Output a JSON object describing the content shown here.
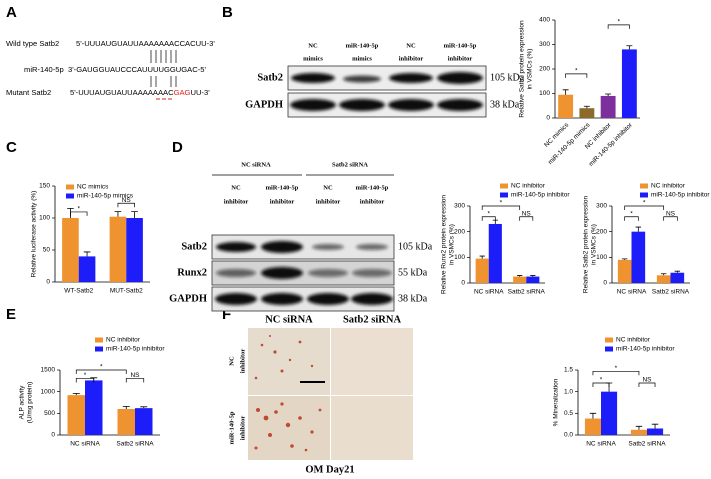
{
  "panel_labels": [
    "A",
    "B",
    "C",
    "D",
    "E",
    "F"
  ],
  "sequences": {
    "wild_type": {
      "label": "Wild type Satb2",
      "sequence": "5'-UUUAUGUAUUAAAAAAACCACUU-3'"
    },
    "mirna": {
      "label": "miR-140-5p",
      "sequence": "3'-GAUGGUAUCCCAUUUUGGUGAC-5'"
    },
    "mutant": {
      "label": "Mutant Satb2",
      "prefix": "5'-UUUAUGUAUUAAAAAAAC",
      "mutation": "GAG",
      "suffix": "UU-3'"
    }
  },
  "blot_B": {
    "columns": [
      [
        "NC",
        "mimics"
      ],
      [
        "miR-140-5p",
        "mimics"
      ],
      [
        "NC",
        "inhibitor"
      ],
      [
        "miR-140-5p",
        "inhibitor"
      ]
    ],
    "rows": [
      "Satb2",
      "GAPDH"
    ],
    "sizes": [
      "105 kDa",
      "38 kDa"
    ]
  },
  "blot_D": {
    "groups": [
      "NC siRNA",
      "Satb2 siRNA"
    ],
    "columns": [
      [
        "NC",
        "inhibitor"
      ],
      [
        "miR-140-5p",
        "inhibitor"
      ],
      [
        "NC",
        "inhibitor"
      ],
      [
        "miR-140-5p",
        "inhibitor"
      ]
    ],
    "rows": [
      "Satb2",
      "Runx2",
      "GAPDH"
    ],
    "sizes": [
      "105 kDa",
      "55 kDa",
      "38 kDa"
    ]
  },
  "images_F": {
    "columns": [
      "NC siRNA",
      "Satb2 siRNA"
    ],
    "rows": [
      [
        "NC",
        "inhibitor"
      ],
      [
        "miR-140-5p",
        "inhibitor"
      ]
    ],
    "caption": "OM Day21"
  },
  "chart_data": [
    {
      "type": "bar",
      "ylabel": [
        "Relative Satb2 protein expression",
        "in VSMCs (%)"
      ],
      "categories": [
        "NC mimics",
        "miR-140-5p mimics",
        "NC inhibitor",
        "miR-140-5p inhibitor"
      ],
      "values": [
        95,
        40,
        90,
        280
      ],
      "errors": [
        20,
        8,
        8,
        15
      ],
      "colors": [
        "#ef9330",
        "#8c6b2a",
        "#7d2f9b",
        "#1d1dfa"
      ],
      "ylim": [
        0,
        400
      ],
      "yticks": [
        0,
        100,
        200,
        300,
        400
      ],
      "annotations": [
        "*",
        "*"
      ]
    },
    {
      "type": "bar",
      "ylabel": [
        "Relative luciferase activity (%)"
      ],
      "categories": [
        "WT-Satb2",
        "MUT-Satb2"
      ],
      "series": [
        {
          "name": "NC mimics",
          "color": "#ef9330",
          "values": [
            100,
            102
          ],
          "errors": [
            15,
            8
          ]
        },
        {
          "name": "miR-140-5p mimics",
          "color": "#1d1dfa",
          "values": [
            40,
            100
          ],
          "errors": [
            7,
            10
          ]
        }
      ],
      "ylim": [
        0,
        150
      ],
      "yticks": [
        0,
        50,
        100,
        150
      ],
      "annotations": [
        "*",
        "NS"
      ]
    },
    {
      "type": "bar",
      "ylabel": [
        "Relative Runx2 protein expression",
        "in VSMCs (%)"
      ],
      "categories": [
        "NC siRNA",
        "Satb2 siRNA"
      ],
      "series": [
        {
          "name": "NC inhibitor",
          "color": "#ef9330",
          "values": [
            95,
            25
          ],
          "errors": [
            10,
            4
          ]
        },
        {
          "name": "miR-140-5p inhibitor",
          "color": "#1d1dfa",
          "values": [
            230,
            25
          ],
          "errors": [
            15,
            4
          ]
        }
      ],
      "ylim": [
        0,
        300
      ],
      "yticks": [
        0,
        100,
        200,
        300
      ],
      "annotations": [
        "*",
        "*",
        "NS"
      ]
    },
    {
      "type": "bar",
      "ylabel": [
        "Relative Satb2 protein expression",
        "in VSMCs (%)"
      ],
      "categories": [
        "NC siRNA",
        "Satb2 siRNA"
      ],
      "series": [
        {
          "name": "NC inhibitor",
          "color": "#ef9330",
          "values": [
            90,
            30
          ],
          "errors": [
            4,
            6
          ]
        },
        {
          "name": "miR-140-5p inhibitor",
          "color": "#1d1dfa",
          "values": [
            200,
            40
          ],
          "errors": [
            18,
            6
          ]
        }
      ],
      "ylim": [
        0,
        300
      ],
      "yticks": [
        0,
        100,
        200,
        300
      ],
      "annotations": [
        "*",
        "*",
        "NS"
      ]
    },
    {
      "type": "bar",
      "ylabel": [
        "ALP activity",
        "(U/mg protein)"
      ],
      "categories": [
        "NC siRNA",
        "Satb2 siRNA"
      ],
      "series": [
        {
          "name": "NC inhibitor",
          "color": "#ef9330",
          "values": [
            920,
            600
          ],
          "errors": [
            40,
            60
          ]
        },
        {
          "name": "miR-140-5p inhibitor",
          "color": "#1d1dfa",
          "values": [
            1260,
            620
          ],
          "errors": [
            60,
            30
          ]
        }
      ],
      "ylim": [
        0,
        1500
      ],
      "yticks": [
        0,
        500,
        1000,
        1500
      ],
      "annotations": [
        "*",
        "*",
        "NS"
      ]
    },
    {
      "type": "bar",
      "ylabel": [
        "% Mineralization"
      ],
      "categories": [
        "NC siRNA",
        "Satb2 siRNA"
      ],
      "series": [
        {
          "name": "NC inhibitor",
          "color": "#ef9330",
          "values": [
            0.38,
            0.12
          ],
          "errors": [
            0.12,
            0.08
          ]
        },
        {
          "name": "miR-140-5p inhibitor",
          "color": "#1d1dfa",
          "values": [
            1.0,
            0.15
          ],
          "errors": [
            0.2,
            0.1
          ]
        }
      ],
      "ylim": [
        0,
        1.5
      ],
      "yticks": [
        {
          "value": 0,
          "label": "0.0"
        },
        0.5,
        {
          "value": 1,
          "label": "1.0"
        },
        1.5
      ],
      "annotations": [
        "*",
        "*",
        "NS"
      ]
    }
  ]
}
